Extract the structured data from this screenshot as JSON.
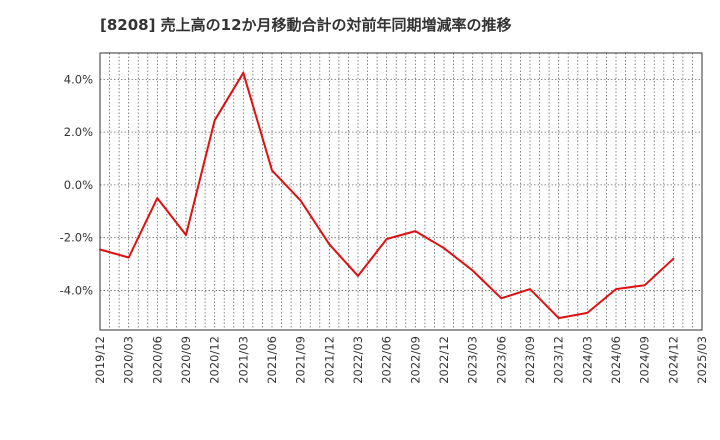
{
  "chart_data": {
    "type": "line",
    "title": "[8208]  売上高の12か月移動合計の対前年同期増減率の推移",
    "xlabel": "",
    "ylabel": "",
    "x_range": [
      "2019/12",
      "2025/03"
    ],
    "ylim": [
      -5.5,
      5.0
    ],
    "grid": true,
    "x_ticks": [
      "2019/12",
      "2020/03",
      "2020/06",
      "2020/09",
      "2020/12",
      "2021/03",
      "2021/06",
      "2021/09",
      "2021/12",
      "2022/03",
      "2022/06",
      "2022/09",
      "2022/12",
      "2023/03",
      "2023/06",
      "2023/09",
      "2023/12",
      "2024/03",
      "2024/06",
      "2024/09",
      "2024/12",
      "2025/03"
    ],
    "y_ticks": [
      {
        "value": 4,
        "label": "4.0%"
      },
      {
        "value": 2,
        "label": "2.0%"
      },
      {
        "value": 0,
        "label": "0.0%"
      },
      {
        "value": -2,
        "label": "-2.0%"
      },
      {
        "value": -4,
        "label": "-4.0%"
      }
    ],
    "series": [
      {
        "name": "対前年同期増減率",
        "color": "#dd1111",
        "x": [
          "2019/12",
          "2020/03",
          "2020/06",
          "2020/09",
          "2020/12",
          "2021/03",
          "2021/06",
          "2021/09",
          "2021/12",
          "2022/03",
          "2022/06",
          "2022/09",
          "2022/12",
          "2023/03",
          "2023/06",
          "2023/09",
          "2023/12",
          "2024/03",
          "2024/06",
          "2024/09",
          "2024/12"
        ],
        "values": [
          -2.45,
          -2.75,
          -0.5,
          -1.9,
          2.45,
          4.25,
          0.55,
          -0.6,
          -2.25,
          -3.45,
          -2.05,
          -1.75,
          -2.4,
          -3.25,
          -4.3,
          -3.95,
          -5.05,
          -4.85,
          -3.95,
          -3.8,
          -2.8
        ]
      }
    ]
  }
}
